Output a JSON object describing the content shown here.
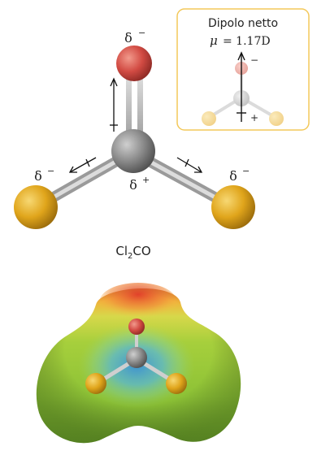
{
  "inset": {
    "title": "Dipolo netto",
    "mu_symbol": "μ",
    "mu_value": "= 1.17D",
    "minus": "−",
    "plus": "+"
  },
  "charges": {
    "top": "δ",
    "top_sign": "−",
    "left": "δ",
    "left_sign": "−",
    "right": "δ",
    "right_sign": "−",
    "center": "δ",
    "center_sign": "+"
  },
  "formula": {
    "prefix": "Cl",
    "subscript": "2",
    "suffix": "CO"
  },
  "colors": {
    "oxygen": "#d24b43",
    "carbon": "#888888",
    "chlorine": "#e0a51b",
    "inset_border": "#f3c85a"
  }
}
